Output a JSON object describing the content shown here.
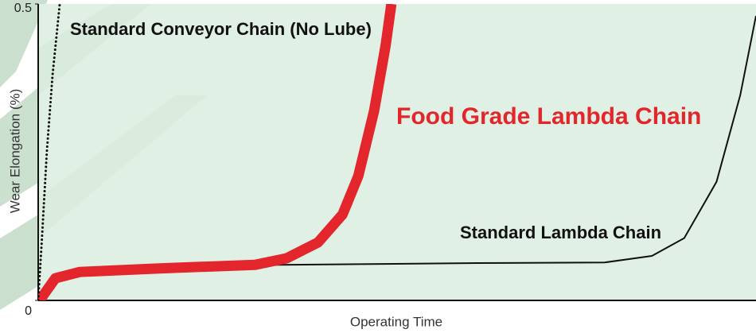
{
  "chart_data": {
    "type": "line",
    "y_label": "Wear Elongation (%)",
    "x_label": "Operating Time",
    "xlim": [
      0,
      100
    ],
    "ylim": [
      0,
      0.5
    ],
    "yticks": [
      0,
      0.5
    ],
    "series": [
      {
        "name": "Standard Conveyor Chain (No Lube)",
        "color": "#111111",
        "style": "dotted",
        "x": [
          0,
          0.5,
          1.2,
          2,
          3
        ],
        "values": [
          0,
          0.1,
          0.25,
          0.38,
          0.5
        ]
      },
      {
        "name": "Food Grade Lambda Chain",
        "color": "#e3262b",
        "style": "thick",
        "x": [
          0.2,
          2.4,
          5.8,
          16.9,
          30.2,
          34.6,
          39.0,
          42.4,
          44.6,
          46.8,
          48.4,
          49.2
        ],
        "values": [
          0,
          0.0375,
          0.048,
          0.054,
          0.06,
          0.071,
          0.098,
          0.145,
          0.21,
          0.32,
          0.43,
          0.5
        ]
      },
      {
        "name": "Standard Lambda Chain",
        "color": "#111111",
        "style": "thin",
        "x": [
          0.2,
          2.4,
          5.8,
          16.9,
          33.5,
          61.2,
          78.9,
          85.5,
          90.0,
          94.5,
          97.8,
          100
        ],
        "values": [
          0,
          0.035,
          0.044,
          0.051,
          0.06,
          0.063,
          0.064,
          0.075,
          0.105,
          0.2,
          0.346,
          0.48
        ]
      }
    ]
  }
}
